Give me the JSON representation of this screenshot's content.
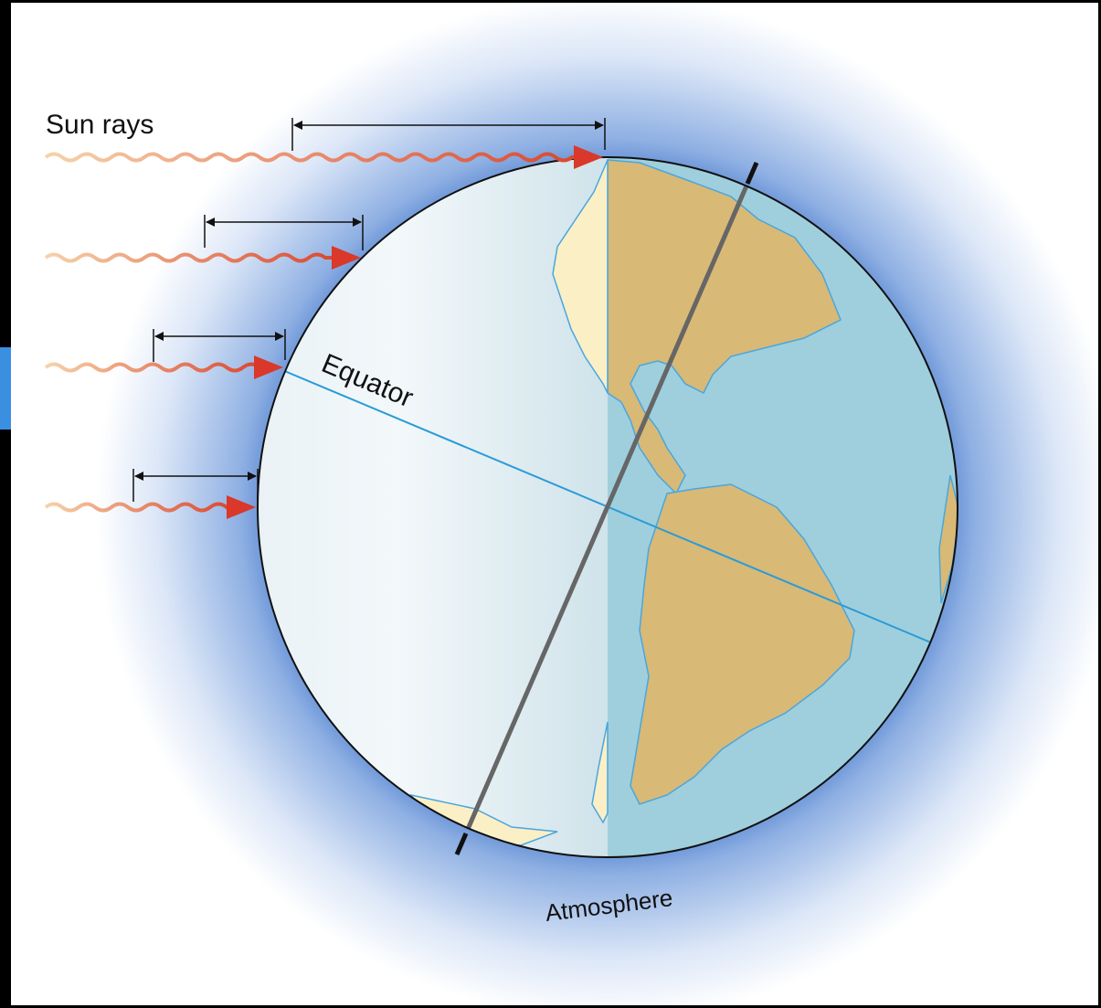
{
  "labels": {
    "sun_rays": "Sun rays",
    "equator": "Equator",
    "atmosphere": "Atmosphere"
  }
}
